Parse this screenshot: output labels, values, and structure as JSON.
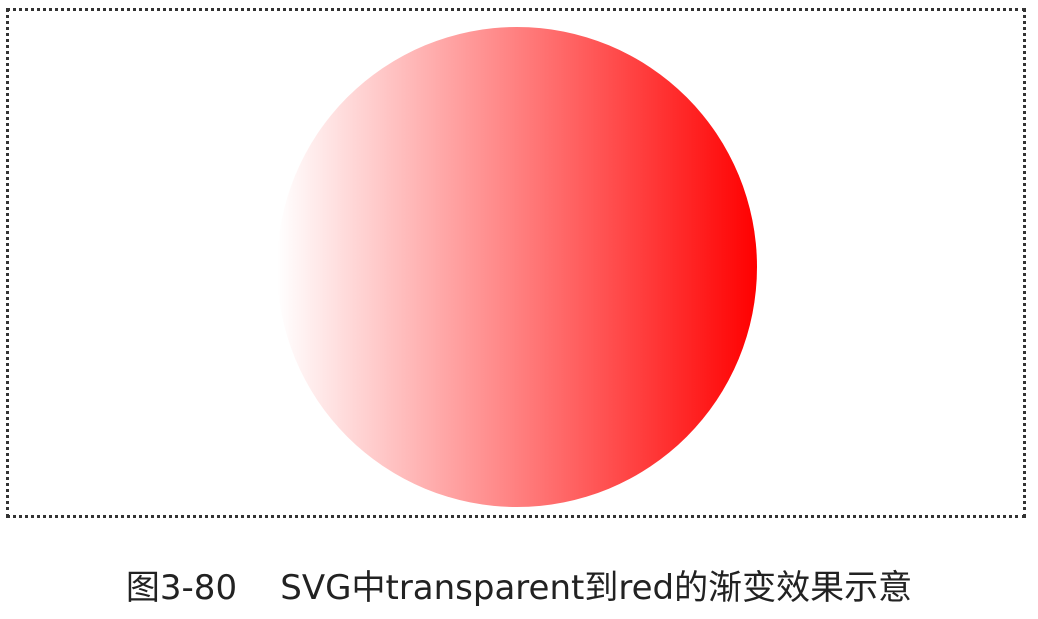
{
  "figure": {
    "caption": "图3-80    SVG中transparent到red的渐变效果示意",
    "gradient": {
      "type": "linear",
      "direction": "left-to-right",
      "from_color": "transparent",
      "to_color": "red",
      "stops": [
        {
          "offset": 0,
          "color": "#ff0000",
          "opacity": 0
        },
        {
          "offset": 1,
          "color": "#ff0000",
          "opacity": 1
        }
      ]
    },
    "shape": "circle"
  }
}
